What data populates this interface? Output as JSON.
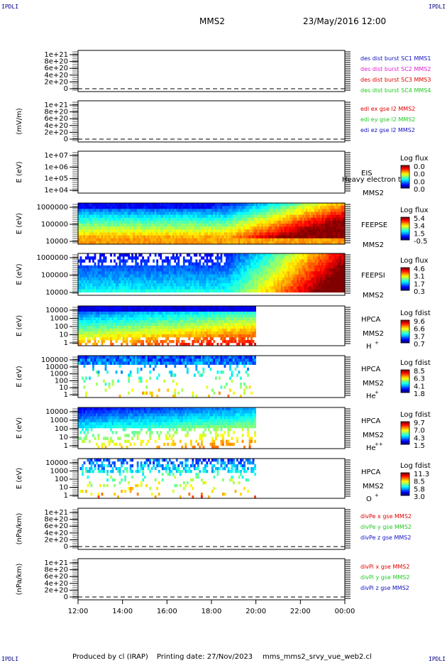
{
  "header": {
    "title": "MMS2",
    "datetime": "23/May/2016 12:00"
  },
  "corners": {
    "top_left": "IPDLI",
    "top_right": "IPDLI",
    "bottom_left": "IPDLI",
    "bottom_right": "IPDLI"
  },
  "footer": {
    "produced": "Produced by cl (IRAP)",
    "printing": "Printing date: 27/Nov/2023",
    "file": "mms_mms2_srvy_vue_web2.cl"
  },
  "colors": {
    "red": "#e00000",
    "green": "#22c922",
    "blue": "#1010c0",
    "magenta": "#e020d0",
    "bg": "#ffffff"
  },
  "time_axis": {
    "ticks": [
      "12:00",
      "14:00",
      "16:00",
      "18:00",
      "20:00",
      "22:00",
      "00:00"
    ]
  },
  "chart_data": [
    {
      "type": "line",
      "id": "p1",
      "ylabel": "",
      "yticks": [
        "1e+21",
        "8e+20",
        "6e+20",
        "4e+20",
        "2e+20",
        "0"
      ],
      "legend": [
        {
          "text": "des dist burst SC1 MMS1",
          "color": "blue"
        },
        {
          "text": "des dist burst SC2 MMS2",
          "color": "magenta"
        },
        {
          "text": "des dist burst SC3 MMS3",
          "color": "red"
        },
        {
          "text": "des dist burst SC4 MMS4",
          "color": "green"
        }
      ]
    },
    {
      "type": "line",
      "id": "p2",
      "ylabel": "(mV/m)",
      "yticks": [
        "1e+21",
        "8e+20",
        "6e+20",
        "4e+20",
        "2e+20",
        "0"
      ],
      "legend": [
        {
          "text": "edi ex gse l2 MMS2",
          "color": "red"
        },
        {
          "text": "edi ey gse l2 MMS2",
          "color": "green"
        },
        {
          "text": "edi ez gse l2 MMS2",
          "color": "blue"
        }
      ]
    },
    {
      "type": "heatmap",
      "id": "p3",
      "ylabel": "E (eV)",
      "yticks": [
        "1e+07",
        "1e+06",
        "1e+05",
        "1e+04"
      ],
      "instrument": [
        "EIS",
        "MMS2"
      ],
      "overlay": "Heavy electron to",
      "colorbar_label": "Log flux",
      "cticks": [
        "0.0",
        "0.0",
        "0.0",
        "0.0"
      ],
      "filled": false
    },
    {
      "type": "heatmap",
      "id": "p4",
      "ylabel": "E (eV)",
      "yticks": [
        "1000000",
        "100000",
        "10000"
      ],
      "instrument": [
        "FEEPSE",
        "MMS2"
      ],
      "colorbar_label": "Log flux",
      "cticks": [
        "5.4",
        "3.4",
        "1.5",
        "-0.5"
      ],
      "filled": true
    },
    {
      "type": "heatmap",
      "id": "p5",
      "ylabel": "E (eV)",
      "yticks": [
        "1000000",
        "100000",
        "10000"
      ],
      "instrument": [
        "FEEPSI",
        "MMS2"
      ],
      "colorbar_label": "Log flux",
      "cticks": [
        "4.6",
        "3.1",
        "1.7",
        "0.3"
      ],
      "filled": true
    },
    {
      "type": "heatmap",
      "id": "p6",
      "ylabel": "E (eV)",
      "yticks": [
        "10000",
        "1000",
        "100",
        "10",
        "1"
      ],
      "instrument": [
        "HPCA",
        "MMS2"
      ],
      "species": "H",
      "charge": "+",
      "colorbar_label": "Log fdist",
      "cticks": [
        "9.6",
        "6.6",
        "3.7",
        "0.7"
      ],
      "filled": true
    },
    {
      "type": "heatmap",
      "id": "p7",
      "ylabel": "E (eV)",
      "yticks": [
        "100000",
        "10000",
        "1000",
        "100",
        "10",
        "1"
      ],
      "instrument": [
        "HPCA",
        "MMS2"
      ],
      "species": "He",
      "charge": "+",
      "colorbar_label": "Log fdist",
      "cticks": [
        "8.5",
        "6.3",
        "4.1",
        "1.8"
      ],
      "filled": true
    },
    {
      "type": "heatmap",
      "id": "p8",
      "ylabel": "E (eV)",
      "yticks": [
        "10000",
        "1000",
        "100",
        "10",
        "1"
      ],
      "instrument": [
        "HPCA",
        "MMS2"
      ],
      "species": "He",
      "charge": "++",
      "colorbar_label": "Log fdist",
      "cticks": [
        "9.7",
        "7.0",
        "4.3",
        "1.5"
      ],
      "filled": true
    },
    {
      "type": "heatmap",
      "id": "p9",
      "ylabel": "E (eV)",
      "yticks": [
        "10000",
        "1000",
        "100",
        "10",
        "1"
      ],
      "instrument": [
        "HPCA",
        "MMS2"
      ],
      "species": "O",
      "charge": "+",
      "colorbar_label": "Log fdist",
      "cticks": [
        "11.3",
        "8.5",
        "5.8",
        "3.0"
      ],
      "filled": true
    },
    {
      "type": "line",
      "id": "p10",
      "ylabel": "(nPa/km)",
      "yticks": [
        "1e+21",
        "8e+20",
        "6e+20",
        "4e+20",
        "2e+20",
        "0"
      ],
      "legend": [
        {
          "text": "divPe x gse MMS2",
          "color": "red"
        },
        {
          "text": "divPe y gse MMS2",
          "color": "green"
        },
        {
          "text": "divPe z gse MMS2",
          "color": "blue"
        }
      ]
    },
    {
      "type": "line",
      "id": "p11",
      "ylabel": "(nPa/km)",
      "yticks": [
        "1e+21",
        "8e+20",
        "6e+20",
        "4e+20",
        "2e+20",
        "0"
      ],
      "legend": [
        {
          "text": "divPi x gse MMS2",
          "color": "red"
        },
        {
          "text": "divPi y gse MMS2",
          "color": "green"
        },
        {
          "text": "divPi z gse MMS2",
          "color": "blue"
        }
      ]
    }
  ]
}
